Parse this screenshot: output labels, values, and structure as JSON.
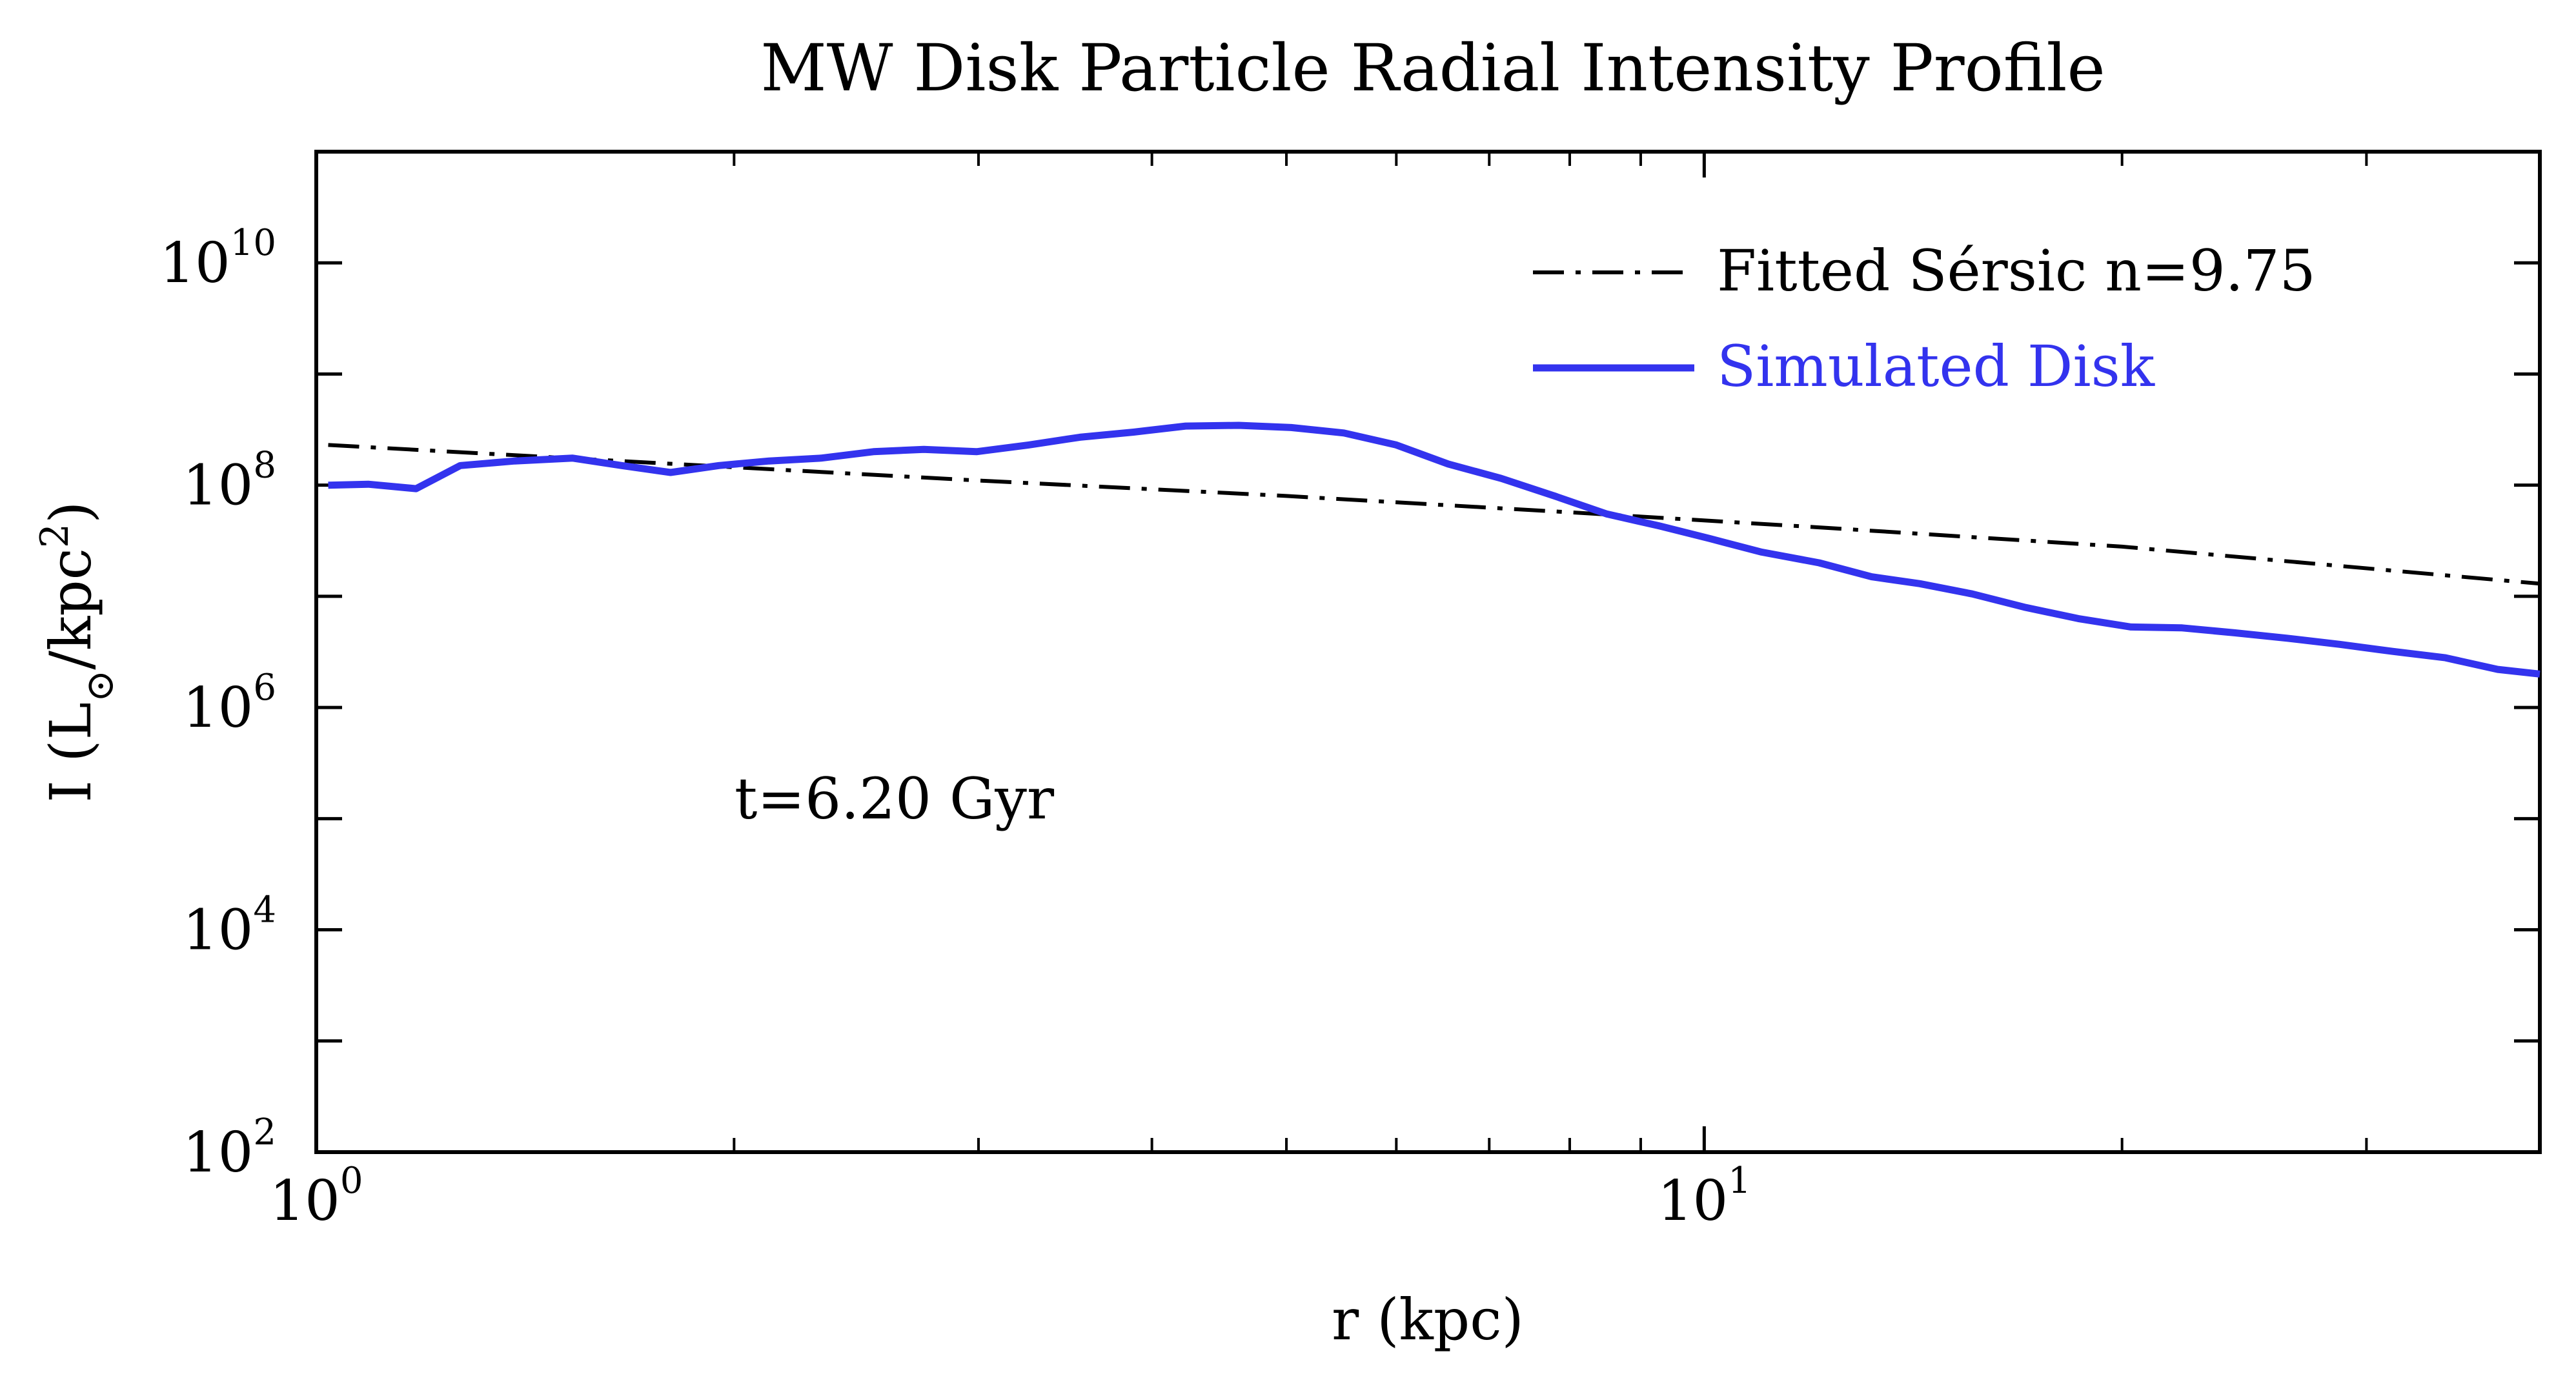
{
  "chart_data": {
    "type": "line",
    "title": "MW Disk Particle Radial Intensity Profile",
    "xlabel": "r (kpc)",
    "ylabel": "I (L⊙/kpc²)",
    "x_scale": "log",
    "y_scale": "log",
    "xlim": [
      1.0,
      40.0
    ],
    "ylim": [
      100,
      100000000000
    ],
    "grid": false,
    "legend_position": "top-right",
    "x_ticks": [
      {
        "value": 1,
        "base": "10",
        "exp": "0"
      },
      {
        "value": 10,
        "base": "10",
        "exp": "1"
      }
    ],
    "y_ticks": [
      {
        "value": 100,
        "base": "10",
        "exp": "2"
      },
      {
        "value": 10000,
        "base": "10",
        "exp": "4"
      },
      {
        "value": 1000000,
        "base": "10",
        "exp": "6"
      },
      {
        "value": 100000000,
        "base": "10",
        "exp": "8"
      },
      {
        "value": 10000000000,
        "base": "10",
        "exp": "10"
      }
    ],
    "annotation": "t=6.20 Gyr",
    "series": [
      {
        "name": "Fitted Sérsic n=9.75",
        "color": "#000000",
        "style": "dashdot",
        "x": [
          1.02,
          2,
          3,
          5,
          8,
          12,
          20,
          40
        ],
        "y": [
          230000000,
          145000000,
          110000000,
          80000000,
          57000000,
          42000000,
          28000000,
          13000000
        ]
      },
      {
        "name": "Simulated Disk",
        "color": "#3333ee",
        "style": "solid",
        "x": [
          1.02,
          1.09,
          1.18,
          1.27,
          1.39,
          1.53,
          1.66,
          1.8,
          1.95,
          2.12,
          2.31,
          2.52,
          2.74,
          2.99,
          3.26,
          3.55,
          3.88,
          4.23,
          4.62,
          5.04,
          5.5,
          6.0,
          6.54,
          7.14,
          7.8,
          8.51,
          9.28,
          10.1,
          11.0,
          12.1,
          13.2,
          14.3,
          15.6,
          17.0,
          18.6,
          20.3,
          22.1,
          24.1,
          26.3,
          28.7,
          31.3,
          34.2,
          37.3,
          40.0
        ],
        "y": [
          100000000,
          102000000,
          93000000,
          150000000,
          165000000,
          175000000,
          150000000,
          130000000,
          150000000,
          165000000,
          175000000,
          200000000,
          210000000,
          200000000,
          230000000,
          270000000,
          300000000,
          340000000,
          345000000,
          330000000,
          295000000,
          230000000,
          155000000,
          115000000,
          80000000,
          55000000,
          43000000,
          33000000,
          25000000,
          20000000,
          15000000,
          13000000,
          10500000,
          8000000,
          6300000,
          5300000,
          5200000,
          4700000,
          4200000,
          3700000,
          3200000,
          2800000,
          2200000,
          2000000
        ]
      }
    ]
  }
}
